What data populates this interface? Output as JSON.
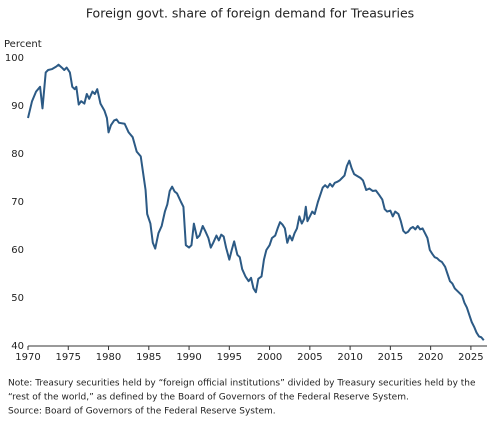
{
  "chart_data": {
    "type": "line",
    "title": "Foreign govt. share of foreign demand for Treasuries",
    "y_label": "Percent",
    "notes": [
      "Note: Treasury securities held by “foreign official institutions” divided by Treasury securities held by the",
      "“rest of the world,” as defined by the Board of Governors of the Federal Reserve System.",
      "Source: Board of Governors of the Federal Reserve System."
    ],
    "xlim": [
      1970,
      2027
    ],
    "xticks": [
      1970,
      1975,
      1980,
      1985,
      1990,
      1995,
      2000,
      2005,
      2010,
      2015,
      2020,
      2025
    ],
    "ylim": [
      40,
      100
    ],
    "yticks": [
      40,
      50,
      60,
      70,
      80,
      90,
      100
    ],
    "grid": false,
    "series": [
      {
        "name": "Foreign govt. share",
        "color": "#2c5a85",
        "x": [
          1970,
          1970.5,
          1971,
          1971.5,
          1971.8,
          1972.2,
          1972.5,
          1973,
          1973.5,
          1973.8,
          1974.2,
          1974.5,
          1974.8,
          1975.2,
          1975.5,
          1975.8,
          1976,
          1976.3,
          1976.6,
          1977,
          1977.3,
          1977.6,
          1978,
          1978.3,
          1978.6,
          1979,
          1979.5,
          1979.8,
          1980,
          1980.3,
          1980.7,
          1981,
          1981.3,
          1982,
          1982.5,
          1983,
          1983.5,
          1984,
          1984.3,
          1984.6,
          1984.8,
          1985.2,
          1985.5,
          1985.8,
          1986.2,
          1986.6,
          1987,
          1987.3,
          1987.6,
          1987.9,
          1988.2,
          1988.5,
          1989,
          1989.3,
          1989.6,
          1990,
          1990.3,
          1990.6,
          1991,
          1991.3,
          1991.7,
          1992,
          1992.4,
          1992.7,
          1993,
          1993.4,
          1993.7,
          1994,
          1994.3,
          1994.6,
          1995,
          1995.3,
          1995.6,
          1996,
          1996.3,
          1996.6,
          1997,
          1997.4,
          1997.7,
          1998,
          1998.3,
          1998.6,
          1999,
          1999.3,
          1999.6,
          2000,
          2000.3,
          2000.7,
          2001,
          2001.3,
          2001.6,
          2001.9,
          2002.2,
          2002.5,
          2002.8,
          2003.1,
          2003.4,
          2003.7,
          2004,
          2004.3,
          2004.5,
          2004.7,
          2005,
          2005.3,
          2005.6,
          2006,
          2006.3,
          2006.6,
          2006.9,
          2007.2,
          2007.5,
          2007.8,
          2008.1,
          2008.4,
          2008.7,
          2009,
          2009.3,
          2009.6,
          2009.9,
          2010.2,
          2010.5,
          2010.8,
          2011.3,
          2011.6,
          2012,
          2012.4,
          2012.8,
          2013.2,
          2013.6,
          2014,
          2014.3,
          2014.6,
          2015,
          2015.3,
          2015.6,
          2016,
          2016.3,
          2016.6,
          2016.9,
          2017.2,
          2017.5,
          2017.8,
          2018.1,
          2018.4,
          2018.7,
          2019,
          2019.3,
          2019.6,
          2019.9,
          2020.2,
          2020.5,
          2020.8,
          2021.1,
          2021.4,
          2021.8,
          2022.1,
          2022.4,
          2022.7,
          2023,
          2023.3,
          2023.6,
          2023.9,
          2024.2,
          2024.5,
          2024.8,
          2025.1,
          2025.4,
          2025.7,
          2026,
          2026.3,
          2026.6
        ],
        "values": [
          87.5,
          91,
          93,
          94,
          89.5,
          97,
          97.5,
          97.7,
          98.2,
          98.6,
          98,
          97.5,
          98,
          97,
          94,
          93.5,
          94,
          90.3,
          91,
          90.5,
          92.5,
          91.5,
          93,
          92.5,
          93.5,
          90.5,
          89,
          87.5,
          84.5,
          86,
          87,
          87.2,
          86.5,
          86.3,
          84.5,
          83.5,
          80.5,
          79.5,
          76,
          72.5,
          67.5,
          65.5,
          61.5,
          60.3,
          63.5,
          65,
          68,
          69.5,
          72.3,
          73.2,
          72.2,
          71.8,
          70,
          69,
          61,
          60.5,
          61,
          65.5,
          62.5,
          63,
          65,
          64,
          62.5,
          60.5,
          61.5,
          63,
          62,
          63.2,
          62.8,
          60.5,
          58,
          60,
          61.8,
          59,
          58.5,
          56,
          54.5,
          53.5,
          54.2,
          52,
          51.2,
          54,
          54.5,
          58,
          60,
          61,
          62.5,
          63,
          64.5,
          65.8,
          65.3,
          64.5,
          61.5,
          63,
          62,
          63.5,
          64.5,
          67,
          65.5,
          66.5,
          69,
          66,
          67,
          68,
          67.5,
          70,
          71.5,
          73,
          73.5,
          73,
          73.8,
          73.2,
          74,
          74.2,
          74.5,
          75,
          75.5,
          77.5,
          78.6,
          77,
          75.8,
          75.5,
          75,
          74.5,
          72.5,
          72.8,
          72.3,
          72.4,
          71.5,
          70.5,
          68.5,
          68,
          68.2,
          67,
          68,
          67.5,
          66,
          64,
          63.5,
          63.8,
          64.5,
          64.8,
          64.3,
          65,
          64.3,
          64.5,
          63.5,
          62.5,
          60,
          59.2,
          58.5,
          58.3,
          57.8,
          57.5,
          56.5,
          55,
          53.5,
          53,
          52,
          51.5,
          51,
          50.5,
          49,
          48,
          46.5,
          45,
          44,
          42.8,
          42,
          41.8,
          41.2
        ]
      }
    ]
  }
}
